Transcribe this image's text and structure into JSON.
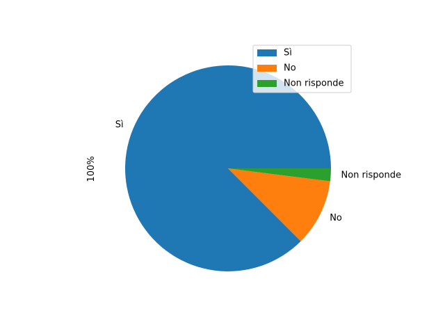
{
  "chart_data": {
    "type": "pie",
    "ylabel": "100%",
    "slices": [
      {
        "label": "Sì",
        "value": 87.5,
        "color": "#1f77b4"
      },
      {
        "label": "No",
        "value": 10.5,
        "color": "#ff7f0e"
      },
      {
        "label": "Non risponde",
        "value": 2.0,
        "color": "#2ca02c"
      }
    ],
    "start_angle_deg": 0,
    "direction": "counterclockwise",
    "legend": {
      "placement": "upper-right",
      "entries": [
        "Sì",
        "No",
        "Non risponde"
      ]
    }
  }
}
